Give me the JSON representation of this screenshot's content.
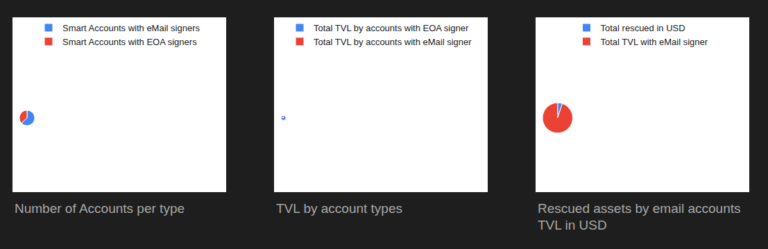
{
  "chart_data": [
    {
      "type": "pie",
      "title": "Number of Accounts per type",
      "categories": [
        "Smart Accounts with eMail signers",
        "Smart Accounts with EOA signers"
      ],
      "values": [
        63,
        37
      ],
      "colors": [
        "#4285f4",
        "#ea4335"
      ],
      "legend": "top",
      "data_labels": false
    },
    {
      "type": "pie",
      "title": "TVL by account types",
      "categories": [
        "Total TVL by accounts with EOA signer",
        "Total TVL by accounts with eMail signer"
      ],
      "values": [
        81,
        19
      ],
      "colors": [
        "#4285f4",
        "#ea4335"
      ],
      "legend": "top",
      "data_labels": false
    },
    {
      "type": "pie",
      "title": "Rescued assets by email accounts TVL in USD",
      "categories": [
        "Total rescued in USD",
        "Total TVL with eMail signer"
      ],
      "values": [
        5,
        95
      ],
      "colors": [
        "#4285f4",
        "#ea4335"
      ],
      "legend": "top",
      "data_labels": false
    }
  ]
}
